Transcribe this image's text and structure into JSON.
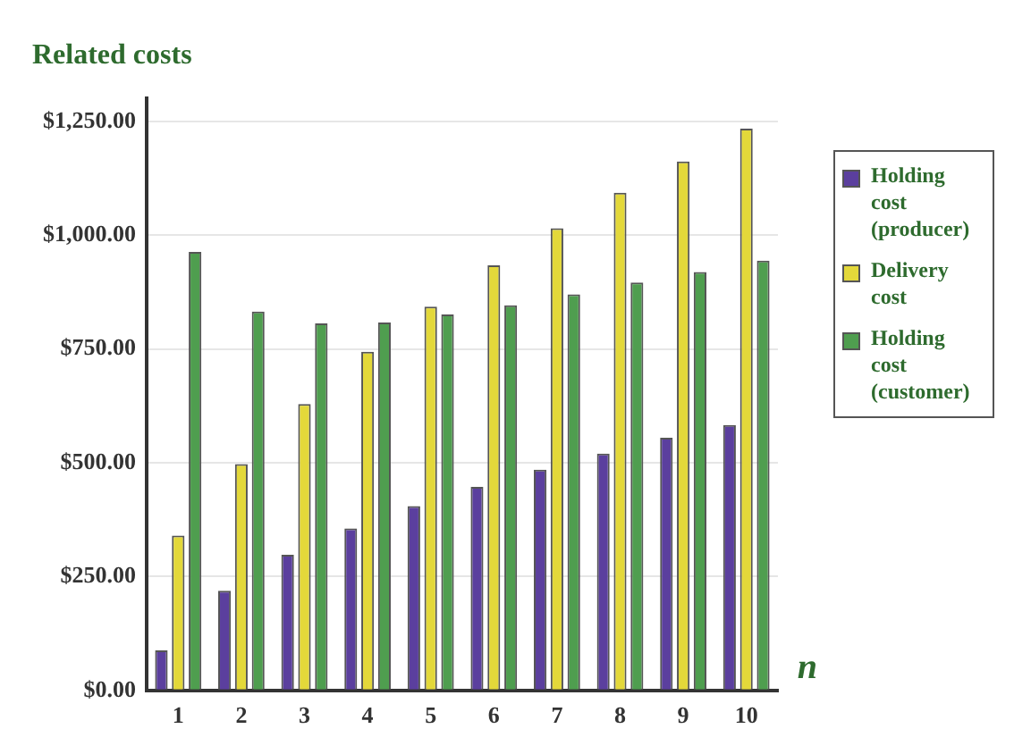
{
  "chart_data": {
    "type": "bar",
    "title": "Related costs",
    "xlabel": "n",
    "categories": [
      "1",
      "2",
      "3",
      "4",
      "5",
      "6",
      "7",
      "8",
      "9",
      "10"
    ],
    "series": [
      {
        "name": "Holding cost (producer)",
        "color": "#5b3f9e",
        "values": [
          88,
          219,
          298,
          356,
          405,
          447,
          485,
          520,
          555,
          583
        ]
      },
      {
        "name": "Delivery cost",
        "color": "#e3d83a",
        "values": [
          340,
          497,
          629,
          744,
          843,
          934,
          1015,
          1093,
          1162,
          1234
        ]
      },
      {
        "name": "Holding cost (customer)",
        "color": "#4f9e4f",
        "values": [
          963,
          832,
          806,
          808,
          826,
          846,
          870,
          896,
          919,
          944
        ]
      }
    ],
    "ylim": [
      0,
      1300
    ],
    "yticks": [
      {
        "value": 0,
        "label": "$0.00"
      },
      {
        "value": 250,
        "label": "$250.00"
      },
      {
        "value": 500,
        "label": "$500.00"
      },
      {
        "value": 750,
        "label": "$750.00"
      },
      {
        "value": 1000,
        "label": "$1,000.00"
      },
      {
        "value": 1250,
        "label": "$1,250.00"
      }
    ],
    "grid": "y",
    "legend": "right"
  }
}
